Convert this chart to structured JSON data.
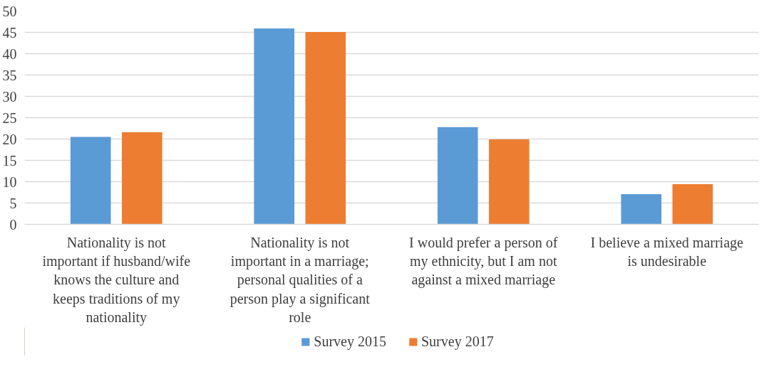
{
  "chart_data": {
    "type": "bar",
    "categories": [
      "Nationality is not important if husband/wife knows the culture and keeps traditions of my nationality",
      "Nationality is not important in a marriage; personal qualities of a person play a significant role",
      "I would prefer a person of my ethnicity, but I am not against a mixed marriage",
      "I believe a mixed marriage is undesirable"
    ],
    "series": [
      {
        "name": "Survey 2015",
        "color": "#5b9bd5",
        "values": [
          20.5,
          45.9,
          22.8,
          7.1
        ]
      },
      {
        "name": "Survey 2017",
        "color": "#ed7d31",
        "values": [
          21.6,
          45.1,
          19.9,
          9.4
        ]
      }
    ],
    "ylim": [
      0,
      50
    ],
    "yticks": [
      0,
      5,
      10,
      15,
      20,
      25,
      30,
      35,
      40,
      45,
      50
    ],
    "grid": "y",
    "legend": "bottom"
  }
}
